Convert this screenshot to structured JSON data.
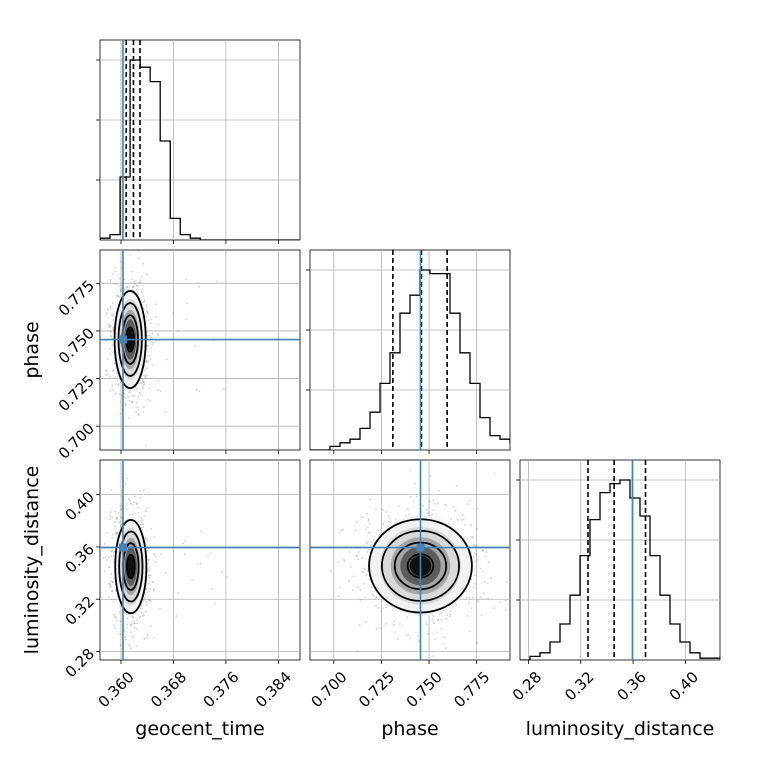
{
  "chart_data": {
    "type": "corner",
    "parameters": [
      "geocent_time",
      "phase",
      "luminosity_distance"
    ],
    "axis_labels": {
      "geocent_time": "geocent_time",
      "phase": "phase",
      "luminosity_distance": "luminosity_distance"
    },
    "ranges": {
      "geocent_time": [
        0.3568,
        0.3873
      ],
      "phase": [
        0.6875,
        0.7925
      ],
      "luminosity_distance": [
        0.2735,
        0.4265
      ]
    },
    "ticks": {
      "geocent_time": [
        "0.360",
        "0.368",
        "0.376",
        "0.384"
      ],
      "phase": [
        "0.700",
        "0.725",
        "0.750",
        "0.775"
      ],
      "luminosity_distance": [
        "0.28",
        "0.32",
        "0.36",
        "0.40"
      ]
    },
    "truths": {
      "geocent_time": 0.3603,
      "phase": 0.7455,
      "luminosity_distance": 0.3595
    },
    "quantiles": {
      "geocent_time": [
        0.3608,
        0.3619,
        0.3629
      ],
      "phase": [
        0.731,
        0.746,
        0.7595
      ],
      "luminosity_distance": [
        0.3255,
        0.3455,
        0.3695
      ]
    },
    "histograms": {
      "geocent_time": {
        "bin_width": 0.00153,
        "counts": [
          0.01,
          0.03,
          0.35,
          1.0,
          0.96,
          0.88,
          0.55,
          0.12,
          0.03,
          0.01,
          0.0,
          0.0,
          0.0,
          0.0,
          0.0,
          0.0,
          0.0,
          0.0,
          0.0,
          0.0
        ]
      },
      "phase": {
        "bin_width": 0.00525,
        "counts": [
          0.0,
          0.0,
          0.02,
          0.04,
          0.06,
          0.12,
          0.21,
          0.37,
          0.54,
          0.76,
          0.86,
          1.0,
          0.98,
          0.98,
          0.76,
          0.54,
          0.37,
          0.18,
          0.08,
          0.06,
          0.04
        ]
      },
      "luminosity_distance": {
        "bin_width": 0.00765,
        "counts": [
          0.0,
          0.02,
          0.04,
          0.1,
          0.2,
          0.36,
          0.58,
          0.78,
          0.93,
          0.98,
          1.0,
          0.9,
          0.8,
          0.58,
          0.36,
          0.2,
          0.1,
          0.04,
          0.01,
          0.01
        ]
      }
    },
    "contours": {
      "phase_vs_geocent_time": {
        "center": [
          0.3614,
          0.7455
        ],
        "sigma": [
          0.0011,
          0.0125
        ]
      },
      "luminosity_distance_vs_geocent_time": {
        "center": [
          0.3615,
          0.345
        ],
        "sigma": [
          0.0011,
          0.0175
        ]
      },
      "luminosity_distance_vs_phase": {
        "center": [
          0.7455,
          0.3455
        ],
        "sigma": [
          0.0125,
          0.0175
        ]
      }
    },
    "truth_color": "#4682b4",
    "grid": true
  }
}
